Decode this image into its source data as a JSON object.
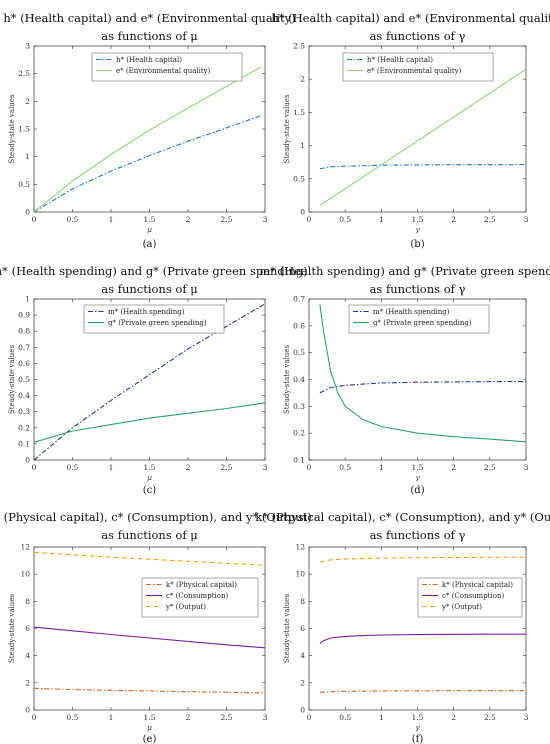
{
  "chart_data": [
    {
      "type": "line",
      "label": "(a)",
      "title": [
        "h* (Health capital) and e* (Environmental quality)",
        "as functions of μ"
      ],
      "xlabel": "μ",
      "ylabel": "Steady-state values",
      "xlim": [
        0,
        3
      ],
      "ylim": [
        0,
        3
      ],
      "xticks": [
        0,
        0.5,
        1,
        1.5,
        2,
        2.5,
        3
      ],
      "yticks": [
        0,
        0.5,
        1,
        1.5,
        2,
        2.5,
        3
      ],
      "legend_position": "top-center",
      "series": [
        {
          "name": "h* (Health capital)",
          "color": "#1f77d4",
          "style": "dashdot",
          "x": [
            0,
            0.5,
            1,
            1.5,
            2,
            2.5,
            2.95
          ],
          "y": [
            0,
            0.42,
            0.74,
            1.02,
            1.28,
            1.52,
            1.74
          ]
        },
        {
          "name": "e* (Environmental quality)",
          "color": "#8fd67a",
          "style": "solid",
          "x": [
            0,
            0.5,
            1,
            1.5,
            2,
            2.5,
            2.95
          ],
          "y": [
            0,
            0.56,
            1.04,
            1.48,
            1.88,
            2.27,
            2.62
          ]
        }
      ]
    },
    {
      "type": "line",
      "label": "(b)",
      "title": [
        "h* (Health capital) and e* (Environmental quality)",
        "as functions of γ"
      ],
      "xlabel": "γ",
      "ylabel": "Steady-state values",
      "xlim": [
        0,
        3
      ],
      "ylim": [
        0,
        2.5
      ],
      "xticks": [
        0,
        0.5,
        1,
        1.5,
        2,
        2.5,
        3
      ],
      "yticks": [
        0,
        0.5,
        1,
        1.5,
        2,
        2.5
      ],
      "legend_position": "top-center",
      "series": [
        {
          "name": "h* (Health capital)",
          "color": "#1f77d4",
          "style": "dashdot",
          "x": [
            0.15,
            0.3,
            0.5,
            1,
            1.5,
            2,
            2.5,
            3
          ],
          "y": [
            0.65,
            0.68,
            0.69,
            0.705,
            0.71,
            0.712,
            0.713,
            0.714
          ]
        },
        {
          "name": "e* (Environmental quality)",
          "color": "#8fd67a",
          "style": "solid",
          "x": [
            0.15,
            3
          ],
          "y": [
            0.1,
            2.15
          ]
        }
      ]
    },
    {
      "type": "line",
      "label": "(c)",
      "title": [
        "m* (Health spending) and g* (Private green spending)",
        "as functions of μ"
      ],
      "xlabel": "μ",
      "ylabel": "Steady-state values",
      "xlim": [
        0,
        3
      ],
      "ylim": [
        0,
        1
      ],
      "xticks": [
        0,
        0.5,
        1,
        1.5,
        2,
        2.5,
        3
      ],
      "yticks": [
        0,
        0.1,
        0.2,
        0.3,
        0.4,
        0.5,
        0.6,
        0.7,
        0.8,
        0.9,
        1
      ],
      "legend_position": "top-left",
      "series": [
        {
          "name": "m* (Health spending)",
          "color": "#243a8f",
          "style": "dashdot",
          "x": [
            0,
            0.5,
            1,
            1.5,
            2,
            2.5,
            3
          ],
          "y": [
            0,
            0.2,
            0.37,
            0.53,
            0.69,
            0.83,
            0.97
          ]
        },
        {
          "name": "g* (Private green spending)",
          "color": "#2aa56a",
          "style": "solid",
          "x": [
            0,
            0.5,
            1,
            1.5,
            2,
            2.5,
            3
          ],
          "y": [
            0.11,
            0.18,
            0.22,
            0.26,
            0.29,
            0.32,
            0.355
          ]
        }
      ]
    },
    {
      "type": "line",
      "label": "(d)",
      "title": [
        "m* (Health spending) and g* (Private green spending)",
        "as functions of γ"
      ],
      "xlabel": "γ",
      "ylabel": "Steady-state values",
      "xlim": [
        0,
        3
      ],
      "ylim": [
        0.1,
        0.7
      ],
      "xticks": [
        0,
        0.5,
        1,
        1.5,
        2,
        2.5,
        3
      ],
      "yticks": [
        0.1,
        0.2,
        0.3,
        0.4,
        0.5,
        0.6,
        0.7
      ],
      "legend_position": "top-right",
      "series": [
        {
          "name": "m* (Health spending)",
          "color": "#243a8f",
          "style": "dashdot",
          "x": [
            0.15,
            0.3,
            0.5,
            0.75,
            1,
            1.5,
            2,
            2.5,
            3
          ],
          "y": [
            0.35,
            0.37,
            0.378,
            0.383,
            0.387,
            0.39,
            0.391,
            0.392,
            0.392
          ]
        },
        {
          "name": "g* (Private green spending)",
          "color": "#2aa56a",
          "style": "solid",
          "x": [
            0.15,
            0.2,
            0.3,
            0.4,
            0.5,
            0.75,
            1,
            1.5,
            2,
            2.5,
            3
          ],
          "y": [
            0.68,
            0.58,
            0.43,
            0.35,
            0.3,
            0.25,
            0.225,
            0.2,
            0.187,
            0.178,
            0.168
          ]
        }
      ]
    },
    {
      "type": "line",
      "label": "(e)",
      "title": [
        "k* (Physical capital), c* (Consumption), and y* (Output)",
        "as functions of μ"
      ],
      "xlabel": "μ",
      "ylabel": "Steady-state values",
      "xlim": [
        0,
        3
      ],
      "ylim": [
        0,
        12
      ],
      "xticks": [
        0,
        0.5,
        1,
        1.5,
        2,
        2.5,
        3
      ],
      "yticks": [
        0,
        2,
        4,
        6,
        8,
        10,
        12
      ],
      "legend_position": "center-right",
      "series": [
        {
          "name": "k* (Physical capital)",
          "color": "#d9651f",
          "style": "dashdot",
          "x": [
            0,
            0.5,
            1,
            1.5,
            2,
            2.5,
            3
          ],
          "y": [
            1.6,
            1.5,
            1.45,
            1.4,
            1.35,
            1.3,
            1.25
          ]
        },
        {
          "name": "c* (Consumption)",
          "color": "#7b1fa2",
          "style": "solid",
          "x": [
            0,
            0.5,
            1,
            1.5,
            2,
            2.5,
            3
          ],
          "y": [
            6.1,
            5.83,
            5.56,
            5.3,
            5.05,
            4.8,
            4.58
          ]
        },
        {
          "name": "y* (Output)",
          "color": "#e8a824",
          "style": "dashed",
          "x": [
            0,
            0.5,
            1,
            1.5,
            2,
            2.5,
            3
          ],
          "y": [
            11.6,
            11.43,
            11.26,
            11.1,
            10.95,
            10.8,
            10.65
          ]
        }
      ]
    },
    {
      "type": "line",
      "label": "(f)",
      "title": [
        "k* (Physical capital), c* (Consumption), and y* (Output)",
        "as functions of γ"
      ],
      "xlabel": "γ",
      "ylabel": "Steady-state values",
      "xlim": [
        0,
        3
      ],
      "ylim": [
        0,
        12
      ],
      "xticks": [
        0,
        0.5,
        1,
        1.5,
        2,
        2.5,
        3
      ],
      "yticks": [
        0,
        2,
        4,
        6,
        8,
        10,
        12
      ],
      "legend_position": "center-right",
      "series": [
        {
          "name": "k* (Physical capital)",
          "color": "#d9651f",
          "style": "dashdot",
          "x": [
            0.15,
            0.3,
            0.5,
            1,
            1.5,
            2,
            2.5,
            3
          ],
          "y": [
            1.3,
            1.35,
            1.38,
            1.4,
            1.41,
            1.42,
            1.42,
            1.42
          ]
        },
        {
          "name": "c* (Consumption)",
          "color": "#7b1fa2",
          "style": "solid",
          "x": [
            0.15,
            0.2,
            0.3,
            0.5,
            0.75,
            1,
            1.5,
            2,
            2.5,
            3
          ],
          "y": [
            4.9,
            5.1,
            5.3,
            5.42,
            5.48,
            5.52,
            5.55,
            5.57,
            5.58,
            5.58
          ]
        },
        {
          "name": "y* (Output)",
          "color": "#e8a824",
          "style": "dashed",
          "x": [
            0.15,
            0.3,
            0.5,
            1,
            1.5,
            2,
            2.5,
            3
          ],
          "y": [
            10.9,
            11.05,
            11.12,
            11.18,
            11.21,
            11.23,
            11.24,
            11.25
          ]
        }
      ]
    }
  ]
}
